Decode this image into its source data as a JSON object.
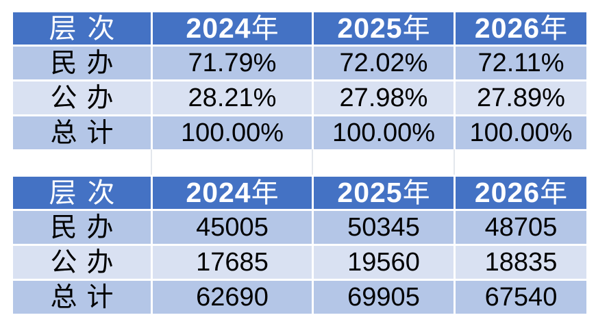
{
  "colors": {
    "page_bg": "#FFFFFF",
    "header_bg": "#4472C4",
    "header_text": "#FFFFFF",
    "row_band_dark": "#B4C6E7",
    "row_band_light": "#D9E1F2",
    "cell_text": "#000000",
    "spacer_line": "#E3E7ED"
  },
  "header": {
    "level_label": "层次",
    "years": [
      {
        "num": "2024",
        "unit": "年"
      },
      {
        "num": "2025",
        "unit": "年"
      },
      {
        "num": "2026",
        "unit": "年"
      }
    ]
  },
  "chart_data": [
    {
      "type": "table",
      "columns": [
        "层次",
        "2024年",
        "2025年",
        "2026年"
      ],
      "rows": [
        [
          "民办",
          "71.79%",
          "72.02%",
          "72.11%"
        ],
        [
          "公办",
          "28.21%",
          "27.98%",
          "27.89%"
        ],
        [
          "总计",
          "100.00%",
          "100.00%",
          "100.00%"
        ]
      ]
    },
    {
      "type": "table",
      "columns": [
        "层次",
        "2024年",
        "2025年",
        "2026年"
      ],
      "rows": [
        [
          "民办",
          "45005",
          "50345",
          "48705"
        ],
        [
          "公办",
          "17685",
          "19560",
          "18835"
        ],
        [
          "总计",
          "62690",
          "69905",
          "67540"
        ]
      ]
    }
  ]
}
